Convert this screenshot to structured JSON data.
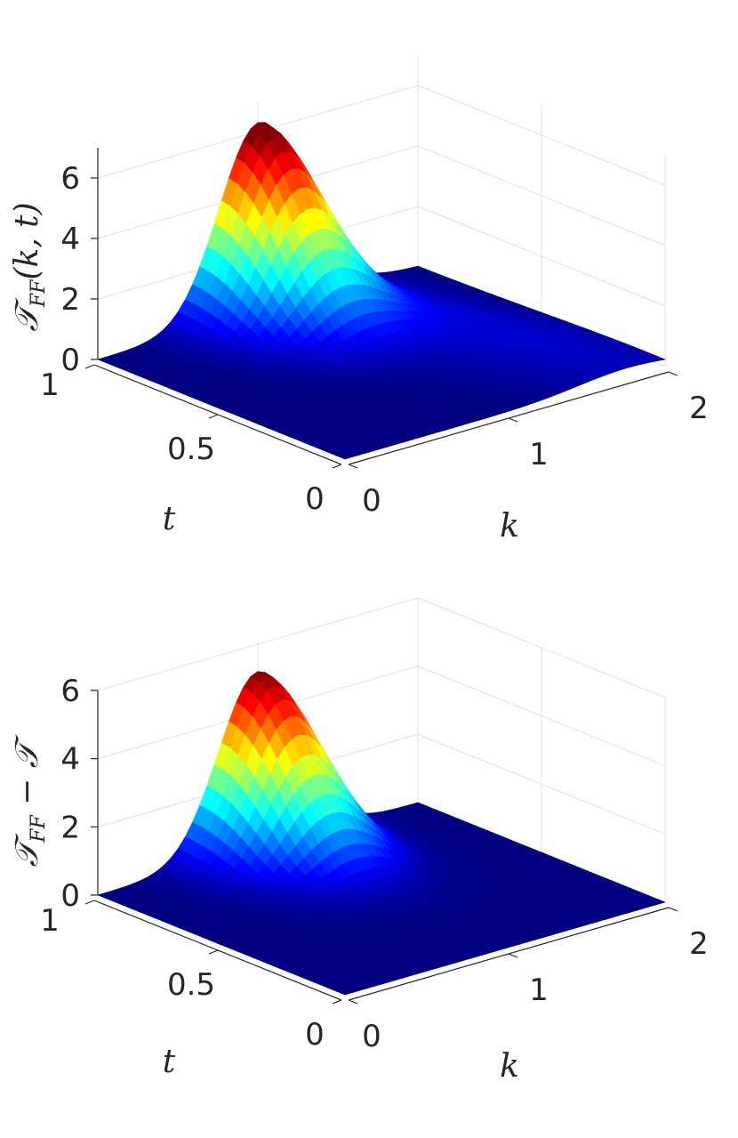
{
  "chart_data": [
    {
      "type": "surface",
      "zlabel": "𝒯_FF(k,t)",
      "xlabel": "k",
      "ylabel": "t",
      "xticks": [
        "0",
        "1",
        "2"
      ],
      "yticks": [
        "0",
        "0.5",
        "1"
      ],
      "zticks": [
        "0",
        "2",
        "4",
        "6"
      ],
      "xlim": [
        0,
        2
      ],
      "ylim": [
        0,
        1
      ],
      "zlim": [
        0,
        7
      ],
      "colormap": "jet",
      "grid": true,
      "peak": {
        "k": 1.0,
        "t": 1.0,
        "z": 6.0
      },
      "surface_model": {
        "k_peak": 1.0,
        "k_width": 0.35,
        "t_sigma": 0.3,
        "z_peak": 6.0,
        "baseline": 0.8
      }
    },
    {
      "type": "surface",
      "zlabel": "𝒯_FF − 𝒯",
      "xlabel": "k",
      "ylabel": "t",
      "xticks": [
        "0",
        "1",
        "2"
      ],
      "yticks": [
        "0",
        "0.5",
        "1"
      ],
      "zticks": [
        "0",
        "2",
        "4",
        "6"
      ],
      "xlim": [
        0,
        2
      ],
      "ylim": [
        0,
        1
      ],
      "zlim": [
        0,
        6
      ],
      "colormap": "jet",
      "grid": true,
      "peak": {
        "k": 1.0,
        "t": 1.0,
        "z": 5.2
      },
      "surface_model": {
        "k_peak": 1.0,
        "k_width": 0.35,
        "t_sigma": 0.3,
        "z_peak": 5.2,
        "baseline": 0.0
      }
    }
  ],
  "labels": {
    "top": {
      "zlabel_main": "𝒯",
      "zlabel_sub": "FF",
      "zlabel_rest": "(k, t)",
      "xlabel": "k",
      "ylabel": "t"
    },
    "bottom": {
      "zlabel_main": "𝒯",
      "zlabel_sub": "FF",
      "zlabel_rest": " − 𝒯",
      "xlabel": "k",
      "ylabel": "t"
    }
  }
}
